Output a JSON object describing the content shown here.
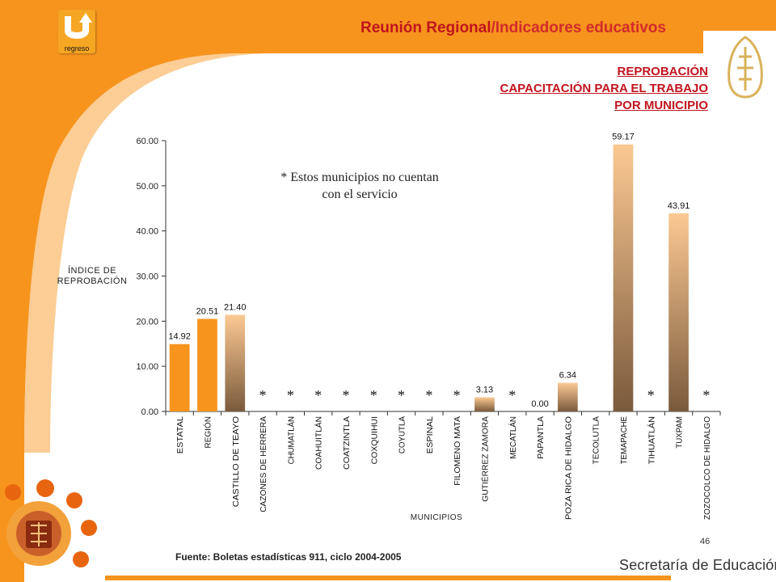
{
  "header": {
    "title_part1": "Reunión Regional",
    "title_part2": "/Indicadores educativos"
  },
  "subtitles": [
    "REPROBACIÓN",
    "CAPACITACIÓN PARA EL TRABAJO",
    "POR MUNICIPIO"
  ],
  "back_button": {
    "label": "regreso",
    "icon": "u-turn-arrow-icon"
  },
  "logos": {
    "top_right": "veracruz-glyph-logo",
    "bottom_left": "state-seal-logo"
  },
  "colors": {
    "orange": "#f7941d",
    "bar_orange": "#f7941d",
    "gradient_top": "#fcc993",
    "gradient_bottom": "#7a5a3c",
    "title_red": "#c0141e"
  },
  "note": [
    "* Estos municipios no cuentan",
    "con el servicio"
  ],
  "source": "Fuente: Boletas estadísticas 911, ciclo 2004-2005",
  "page_number": "46",
  "footer": "Secretaría de Educación",
  "chart_data": {
    "type": "bar",
    "xlabel": "MUNICIPIOS",
    "ylabel": [
      "ÍNDICE DE",
      "REPROBACIÓN"
    ],
    "ylim": [
      0,
      60
    ],
    "yticks": [
      "0.00",
      "10.00",
      "20.00",
      "30.00",
      "40.00",
      "50.00",
      "60.00"
    ],
    "categories": [
      "ESTATAL",
      "REGIÓN",
      "CASTILLO DE TEAYO",
      "CAZONES DE HERRERA",
      "CHUMATLÁN",
      "COAHUITLÁN",
      "COATZINTLA",
      "COXQUIHUI",
      "COYUTLA",
      "ESPINAL",
      "FILOMENO MATA",
      "GUTIÉRREZ ZAMORA",
      "MECATLÁN",
      "PAPANTLA",
      "POZA RICA DE HIDALGO",
      "TECOLUTLA",
      "TEMAPACHE",
      "TIHUATLÁN",
      "TUXPAM",
      "ZOZOCOLCO DE HIDALGO"
    ],
    "values": [
      14.92,
      20.51,
      21.4,
      null,
      null,
      null,
      null,
      null,
      null,
      null,
      null,
      3.13,
      null,
      0.0,
      6.34,
      null,
      59.17,
      null,
      43.91,
      null
    ],
    "value_labels": [
      "14.92",
      "20.51",
      "21.40",
      "",
      "",
      "",
      "",
      "",
      "",
      "",
      "",
      "3.13",
      "",
      "0.00",
      "6.34",
      "",
      "59.17",
      "",
      "43.91",
      ""
    ],
    "no_service_marker": "*",
    "no_service": [
      false,
      false,
      false,
      true,
      true,
      true,
      true,
      true,
      true,
      true,
      true,
      false,
      true,
      false,
      false,
      false,
      false,
      true,
      false,
      true
    ],
    "solid_orange_bars": [
      true,
      true,
      false,
      false,
      false,
      false,
      false,
      false,
      false,
      false,
      false,
      false,
      false,
      false,
      false,
      false,
      false,
      false,
      false,
      false
    ]
  }
}
